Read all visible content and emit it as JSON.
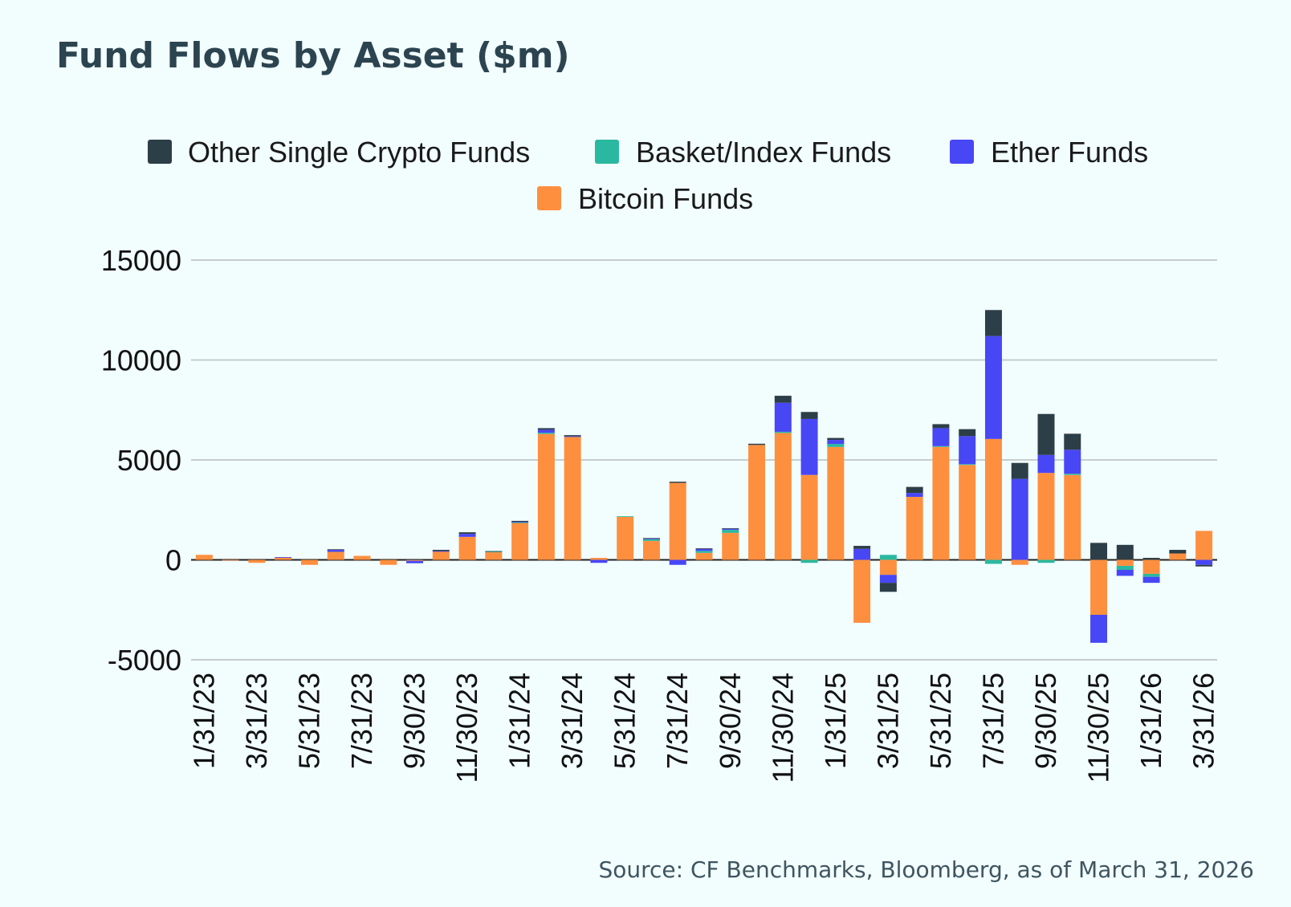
{
  "colors": {
    "Other Single Crypto Funds": "#2c3e48",
    "Basket/Index Funds": "#2bb8a0",
    "Ether Funds": "#4747f5",
    "Bitcoin Funds": "#fe8f3f"
  },
  "chart_data": {
    "type": "bar",
    "stacked": true,
    "title": "Fund Flows by Asset ($m)",
    "xlabel": "",
    "ylabel": "",
    "ylim": [
      -5000,
      15000
    ],
    "yticks": [
      15000,
      10000,
      5000,
      0,
      -5000
    ],
    "grid": true,
    "legend_position": "top",
    "source": "Source: CF Benchmarks, Bloomberg, as of March 31, 2026",
    "categories": [
      "1/31/23",
      "2/28/23",
      "3/31/23",
      "4/30/23",
      "5/31/23",
      "6/30/23",
      "7/31/23",
      "8/31/23",
      "9/30/23",
      "10/31/23",
      "11/30/23",
      "12/31/23",
      "1/31/24",
      "2/29/24",
      "3/31/24",
      "4/30/24",
      "5/31/24",
      "6/30/24",
      "7/31/24",
      "8/31/24",
      "9/30/24",
      "10/31/24",
      "11/30/24",
      "12/31/24",
      "1/31/25",
      "2/28/25",
      "3/31/25",
      "4/30/25",
      "5/31/25",
      "6/30/25",
      "7/31/25",
      "8/31/25",
      "9/30/25",
      "10/31/25",
      "11/30/25",
      "12/31/25",
      "1/31/26",
      "2/28/26",
      "3/31/26"
    ],
    "tick_labels": [
      "1/31/23",
      "3/31/23",
      "5/31/23",
      "7/31/23",
      "9/30/23",
      "11/30/23",
      "1/31/24",
      "3/31/24",
      "5/31/24",
      "7/31/24",
      "9/30/24",
      "11/30/24",
      "1/31/25",
      "3/31/25",
      "5/31/25",
      "7/31/25",
      "9/30/25",
      "11/30/25",
      "1/31/26",
      "3/31/26"
    ],
    "series": [
      {
        "name": "Bitcoin Funds",
        "values": [
          250,
          -30,
          -150,
          120,
          -250,
          400,
          200,
          -250,
          -50,
          420,
          1150,
          380,
          1850,
          6300,
          6150,
          100,
          2150,
          950,
          3850,
          350,
          1350,
          5750,
          6350,
          4250,
          5650,
          -3150,
          -750,
          3150,
          5650,
          4750,
          6050,
          -250,
          4350,
          4250,
          -2750,
          -300,
          -700,
          320,
          1450
        ]
      },
      {
        "name": "Basket/Index Funds",
        "values": [
          0,
          0,
          0,
          0,
          0,
          0,
          0,
          0,
          0,
          0,
          0,
          40,
          20,
          60,
          0,
          0,
          30,
          80,
          0,
          100,
          150,
          0,
          60,
          -150,
          150,
          0,
          250,
          0,
          40,
          40,
          -200,
          0,
          -150,
          60,
          0,
          -200,
          -150,
          0,
          0
        ]
      },
      {
        "name": "Ether Funds",
        "values": [
          0,
          0,
          0,
          20,
          0,
          100,
          0,
          0,
          -120,
          20,
          150,
          0,
          30,
          150,
          30,
          -150,
          0,
          40,
          -250,
          100,
          60,
          0,
          1450,
          2800,
          200,
          550,
          -400,
          200,
          900,
          1400,
          5150,
          4050,
          900,
          1200,
          -1400,
          -300,
          -300,
          0,
          -250
        ]
      },
      {
        "name": "Other Single Crypto Funds",
        "values": [
          0,
          0,
          0,
          0,
          0,
          30,
          0,
          0,
          20,
          60,
          80,
          20,
          50,
          80,
          60,
          0,
          0,
          20,
          60,
          30,
          20,
          60,
          350,
          350,
          100,
          150,
          -450,
          300,
          200,
          350,
          1300,
          800,
          2050,
          800,
          850,
          750,
          100,
          180,
          -80
        ]
      }
    ]
  },
  "legend": [
    "Other Single Crypto Funds",
    "Basket/Index Funds",
    "Ether Funds",
    "Bitcoin Funds"
  ]
}
